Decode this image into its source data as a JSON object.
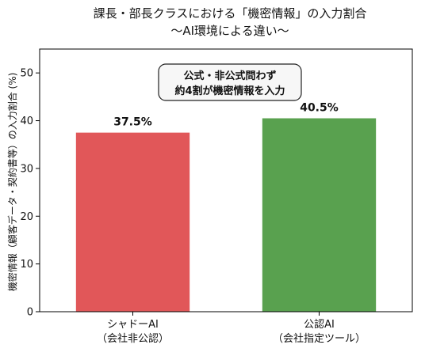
{
  "chart_data": {
    "type": "bar",
    "title": "課長・部長クラスにおける「機密情報」の入力割合",
    "subtitle": "〜AI環境による違い〜",
    "categories": [
      {
        "line1": "シャドーAI",
        "line2": "（会社非公認）"
      },
      {
        "line1": "公認AI",
        "line2": "（会社指定ツール）"
      }
    ],
    "values": [
      37.5,
      40.5
    ],
    "value_labels": [
      "37.5%",
      "40.5%"
    ],
    "bar_colors": [
      "#e15759",
      "#59a14f"
    ],
    "ylabel": "機密情報（顧客データ・契約書等）の入力割合 (%)",
    "ylim": [
      0,
      55
    ],
    "yticks": [
      0,
      10,
      20,
      30,
      40,
      50
    ],
    "grid": false,
    "annotation": {
      "line1": "公式・非公式問わず",
      "line2": "約4割が機密情報を入力"
    }
  }
}
